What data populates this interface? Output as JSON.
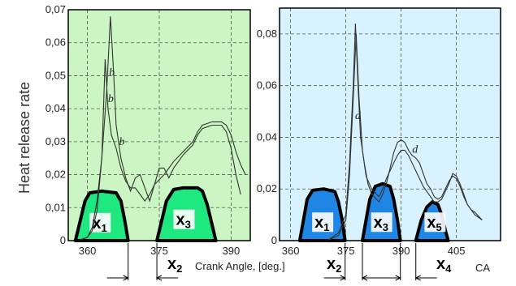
{
  "ylabel": "Heat release rate",
  "bottom": {
    "xlabel": "Crank Angle, [deg.]",
    "ca_label": "CA"
  },
  "colors": {
    "left_bg": "#ccf5c4",
    "right_bg": "#d8f3ff",
    "left_fill": "#1ee880",
    "right_fill": "#1f86e6",
    "curve": "#333333",
    "outline": "#000000"
  },
  "chart_data": [
    {
      "type": "line",
      "panel": "left",
      "xlim": [
        356,
        394
      ],
      "ylim": [
        0,
        0.07
      ],
      "x_ticks": [
        360,
        375,
        390
      ],
      "x_tick_labels": [
        "360",
        "375",
        "390"
      ],
      "y_ticks": [
        0,
        0.01,
        0.02,
        0.03,
        0.04,
        0.05,
        0.06,
        0.07
      ],
      "y_tick_labels": [
        "0",
        "0,01",
        "0,02",
        "0,03",
        "0,04",
        "0,05",
        "0,06",
        "0,07"
      ],
      "grid": true,
      "series": [
        {
          "name": "b",
          "points": [
            [
              358,
              0.0
            ],
            [
              360,
              0.001
            ],
            [
              361,
              0.004
            ],
            [
              362,
              0.012
            ],
            [
              363,
              0.025
            ],
            [
              364,
              0.045
            ],
            [
              364.8,
              0.068
            ],
            [
              365.5,
              0.05
            ],
            [
              366,
              0.035
            ],
            [
              367,
              0.025
            ],
            [
              368,
              0.019
            ],
            [
              369,
              0.015
            ],
            [
              370,
              0.019
            ],
            [
              371,
              0.02
            ],
            [
              372,
              0.016
            ],
            [
              373,
              0.012
            ],
            [
              374,
              0.017
            ],
            [
              375,
              0.022
            ],
            [
              376,
              0.022
            ],
            [
              377,
              0.019
            ],
            [
              378,
              0.022
            ],
            [
              380,
              0.026
            ],
            [
              382,
              0.029
            ],
            [
              383,
              0.032
            ],
            [
              384,
              0.034
            ],
            [
              386,
              0.035
            ],
            [
              388,
              0.035
            ],
            [
              389,
              0.033
            ],
            [
              390,
              0.028
            ],
            [
              391,
              0.02
            ],
            [
              392,
              0.014
            ]
          ],
          "label_positions": [
            [
              364.5,
              0.05
            ]
          ]
        },
        {
          "name": "",
          "points": [
            [
              358,
              0.0
            ],
            [
              360,
              0.001
            ],
            [
              361,
              0.003
            ],
            [
              362,
              0.009
            ],
            [
              363,
              0.025
            ],
            [
              363.7,
              0.055
            ],
            [
              364.3,
              0.04
            ],
            [
              365,
              0.032
            ],
            [
              366,
              0.028
            ],
            [
              367,
              0.022
            ],
            [
              368,
              0.018
            ],
            [
              369,
              0.016
            ],
            [
              370,
              0.016
            ],
            [
              371,
              0.014
            ],
            [
              372,
              0.012
            ],
            [
              373,
              0.014
            ],
            [
              374,
              0.017
            ],
            [
              376,
              0.02
            ],
            [
              378,
              0.024
            ],
            [
              380,
              0.027
            ],
            [
              382,
              0.03
            ],
            [
              383,
              0.033
            ],
            [
              384,
              0.035
            ],
            [
              386,
              0.036
            ],
            [
              388,
              0.036
            ],
            [
              389,
              0.035
            ],
            [
              390,
              0.032
            ],
            [
              391,
              0.027
            ],
            [
              392,
              0.023
            ],
            [
              393,
              0.02
            ]
          ],
          "label_positions": [
            [
              364.3,
              0.042
            ],
            [
              366.6,
              0.029
            ]
          ]
        }
      ],
      "segments": [
        {
          "label": "x",
          "sub": "1",
          "points": [
            [
              357.5,
              0
            ],
            [
              358.5,
              0.006
            ],
            [
              359.5,
              0.012
            ],
            [
              360.5,
              0.0145
            ],
            [
              363,
              0.015
            ],
            [
              366,
              0.0145
            ],
            [
              367,
              0.012
            ],
            [
              367.8,
              0.006
            ],
            [
              368.5,
              0
            ]
          ],
          "label_at": [
            362.5,
            0.003
          ]
        },
        {
          "label": "x",
          "sub": "3",
          "points": [
            [
              374.5,
              0
            ],
            [
              375.5,
              0.006
            ],
            [
              376.5,
              0.012
            ],
            [
              378,
              0.0155
            ],
            [
              380,
              0.016
            ],
            [
              383,
              0.016
            ],
            [
              384,
              0.015
            ],
            [
              385,
              0.011
            ],
            [
              386,
              0.005
            ],
            [
              386.8,
              0
            ]
          ],
          "label_at": [
            380,
            0.004
          ]
        }
      ],
      "gap_labels": [
        {
          "label": "x",
          "sub": "2"
        }
      ]
    },
    {
      "type": "line",
      "panel": "right",
      "xlim": [
        357,
        417
      ],
      "ylim": [
        0,
        0.09
      ],
      "x_ticks": [
        360,
        375,
        390,
        405
      ],
      "x_tick_labels": [
        "360",
        "375",
        "390",
        "405"
      ],
      "y_ticks": [
        0,
        0.02,
        0.04,
        0.06,
        0.08
      ],
      "y_tick_labels": [
        "0",
        "0,02",
        "0,04",
        "0,06",
        "0,08"
      ],
      "grid": true,
      "series": [
        {
          "name": "d",
          "points": [
            [
              370,
              0.0
            ],
            [
              373,
              0.003
            ],
            [
              375,
              0.01
            ],
            [
              376,
              0.03
            ],
            [
              377,
              0.06
            ],
            [
              377.6,
              0.084
            ],
            [
              378.3,
              0.06
            ],
            [
              379,
              0.04
            ],
            [
              380,
              0.03
            ],
            [
              381,
              0.022
            ],
            [
              382,
              0.018
            ],
            [
              384,
              0.015
            ],
            [
              385,
              0.018
            ],
            [
              386,
              0.022
            ],
            [
              387,
              0.028
            ],
            [
              388,
              0.034
            ],
            [
              389,
              0.038
            ],
            [
              390,
              0.039
            ],
            [
              391,
              0.038
            ],
            [
              392,
              0.035
            ],
            [
              393,
              0.033
            ],
            [
              394,
              0.032
            ],
            [
              395,
              0.03
            ],
            [
              396,
              0.026
            ],
            [
              397,
              0.022
            ],
            [
              398,
              0.02
            ],
            [
              399,
              0.017
            ],
            [
              400,
              0.016
            ],
            [
              401,
              0.017
            ],
            [
              402,
              0.02
            ],
            [
              403,
              0.023
            ],
            [
              404,
              0.025
            ],
            [
              405,
              0.024
            ],
            [
              406,
              0.021
            ],
            [
              407,
              0.017
            ],
            [
              408,
              0.014
            ],
            [
              409,
              0.012
            ],
            [
              410,
              0.011
            ],
            [
              412,
              0.008
            ]
          ],
          "label_positions": [
            [
              377.5,
              0.047
            ],
            [
              393,
              0.034
            ]
          ]
        },
        {
          "name": "",
          "points": [
            [
              370,
              0.0
            ],
            [
              373,
              0.002
            ],
            [
              375,
              0.008
            ],
            [
              376,
              0.025
            ],
            [
              377,
              0.055
            ],
            [
              377.8,
              0.08
            ],
            [
              378.6,
              0.055
            ],
            [
              379.5,
              0.035
            ],
            [
              380.5,
              0.025
            ],
            [
              382,
              0.02
            ],
            [
              384,
              0.017
            ],
            [
              385,
              0.02
            ],
            [
              386,
              0.024
            ],
            [
              387,
              0.027
            ],
            [
              388,
              0.03
            ],
            [
              389,
              0.033
            ],
            [
              390,
              0.035
            ],
            [
              391,
              0.035
            ],
            [
              392,
              0.033
            ],
            [
              393,
              0.03
            ],
            [
              394,
              0.027
            ],
            [
              395,
              0.024
            ],
            [
              396,
              0.021
            ],
            [
              397,
              0.019
            ],
            [
              398,
              0.017
            ],
            [
              399,
              0.015
            ],
            [
              400,
              0.015
            ],
            [
              401,
              0.016
            ],
            [
              402,
              0.019
            ],
            [
              403,
              0.022
            ],
            [
              404,
              0.026
            ],
            [
              405,
              0.025
            ],
            [
              406,
              0.022
            ],
            [
              407,
              0.018
            ],
            [
              408,
              0.014
            ],
            [
              409,
              0.012
            ],
            [
              410,
              0.01
            ],
            [
              412,
              0.008
            ]
          ]
        }
      ],
      "segments": [
        {
          "label": "x",
          "sub": "1",
          "points": [
            [
              362.5,
              0
            ],
            [
              363.5,
              0.008
            ],
            [
              364.5,
              0.016
            ],
            [
              366,
              0.0195
            ],
            [
              369,
              0.02
            ],
            [
              372,
              0.019
            ],
            [
              373,
              0.015
            ],
            [
              374,
              0.008
            ],
            [
              374.8,
              0
            ]
          ],
          "label_at": [
            368.5,
            0.004
          ]
        },
        {
          "label": "x",
          "sub": "3",
          "points": [
            [
              379.5,
              0
            ],
            [
              380.5,
              0.008
            ],
            [
              381.5,
              0.016
            ],
            [
              383,
              0.021
            ],
            [
              385,
              0.022
            ],
            [
              387,
              0.021
            ],
            [
              388,
              0.016
            ],
            [
              389,
              0.008
            ],
            [
              389.8,
              0
            ]
          ],
          "label_at": [
            384.5,
            0.004
          ]
        },
        {
          "label": "x",
          "sub": "5",
          "points": [
            [
              394,
              0
            ],
            [
              395.5,
              0.008
            ],
            [
              397,
              0.013
            ],
            [
              398.5,
              0.015
            ],
            [
              400,
              0.014
            ],
            [
              401,
              0.01
            ],
            [
              402,
              0.004
            ],
            [
              402.8,
              0
            ]
          ],
          "label_at": [
            399,
            0.004
          ]
        }
      ],
      "gap_labels": [
        {
          "label": "x",
          "sub": "2"
        },
        {
          "label": "x",
          "sub": "4"
        }
      ]
    }
  ]
}
